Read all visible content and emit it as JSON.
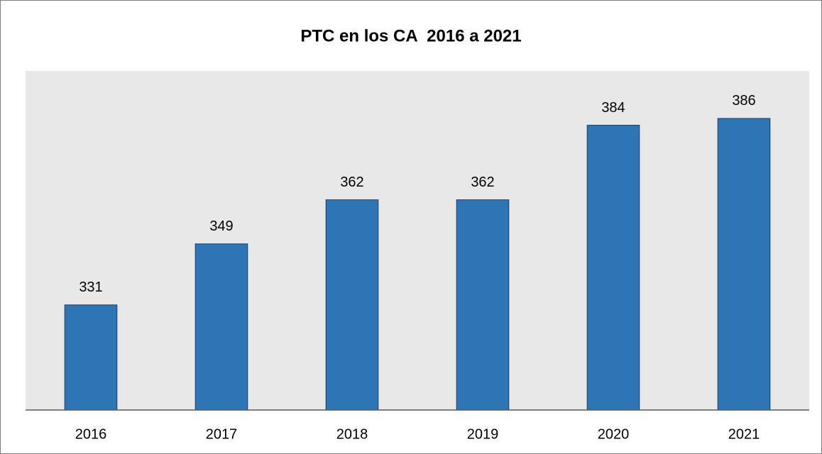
{
  "chart_data": {
    "type": "bar",
    "title": "PTC en los CA  2016 a 2021",
    "categories": [
      "2016",
      "2017",
      "2018",
      "2019",
      "2020",
      "2021"
    ],
    "values": [
      331,
      349,
      362,
      362,
      384,
      386
    ],
    "color": "#2e75b6",
    "ylim": [
      300,
      400
    ]
  }
}
